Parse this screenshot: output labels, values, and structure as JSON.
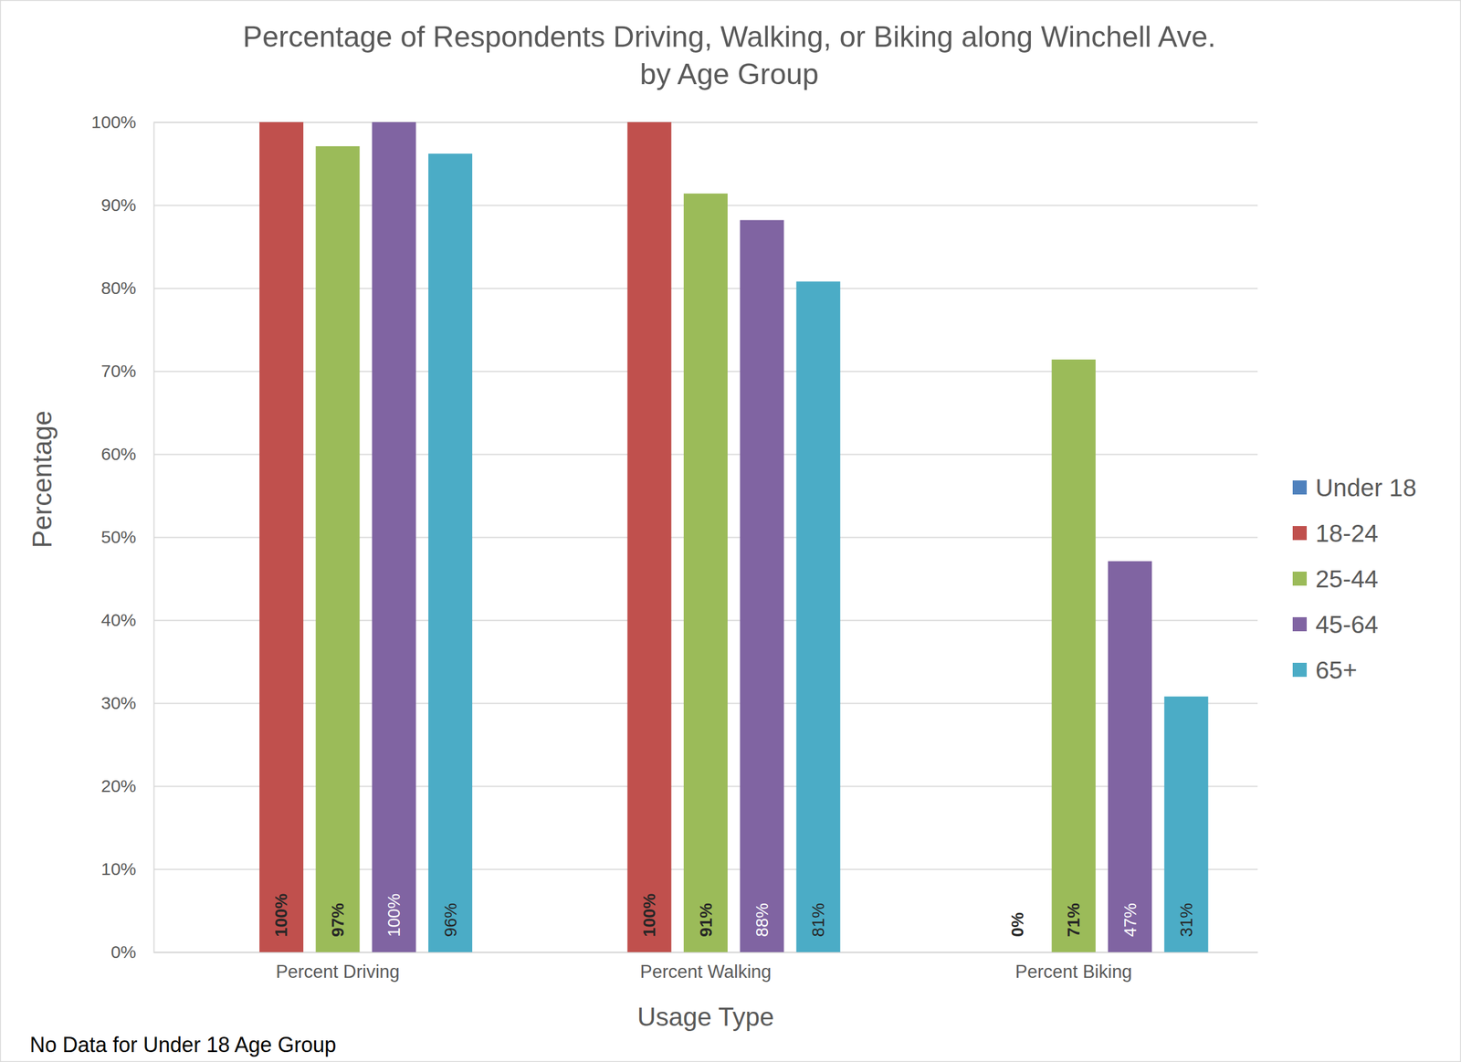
{
  "chart_data": {
    "type": "bar",
    "title": "Percentage of Respondents Driving, Walking, or Biking along Winchell Ave.\nby Age Group",
    "x_label": "Usage Type",
    "y_label": "Percentage",
    "annotation": "No Data for Under 18 Age Group",
    "categories": [
      "Percent Driving",
      "Percent Walking",
      "Percent Biking"
    ],
    "series": [
      {
        "name": "Under 18",
        "color": "#4f81bd",
        "values": [
          null,
          null,
          null
        ]
      },
      {
        "name": "18-24",
        "color": "#c0504d",
        "values": [
          100,
          100,
          0
        ],
        "value_labels": [
          "100%",
          "100%",
          "0%"
        ]
      },
      {
        "name": "25-44",
        "color": "#9bbb59",
        "values": [
          97.1,
          91.4,
          71.4
        ],
        "value_labels": [
          "97%",
          "91%",
          "71%"
        ]
      },
      {
        "name": "45-64",
        "color": "#8064a2",
        "values": [
          100,
          88.2,
          47.1
        ],
        "value_labels": [
          "100%",
          "88%",
          "47%"
        ]
      },
      {
        "name": "65+",
        "color": "#4bacc6",
        "values": [
          96.2,
          80.8,
          30.8
        ],
        "value_labels": [
          "96%",
          "81%",
          "31%"
        ]
      }
    ],
    "ylim": [
      0,
      100
    ],
    "yticks": [
      {
        "value": 0,
        "label": "0%"
      },
      {
        "value": 10,
        "label": "10%"
      },
      {
        "value": 20,
        "label": "20%"
      },
      {
        "value": 30,
        "label": "30%"
      },
      {
        "value": 40,
        "label": "40%"
      },
      {
        "value": 50,
        "label": "50%"
      },
      {
        "value": 60,
        "label": "60%"
      },
      {
        "value": 70,
        "label": "70%"
      },
      {
        "value": 80,
        "label": "80%"
      },
      {
        "value": 90,
        "label": "90%"
      },
      {
        "value": 100,
        "label": "100%"
      }
    ],
    "grid": true,
    "legend": "right",
    "data_labels": true
  }
}
